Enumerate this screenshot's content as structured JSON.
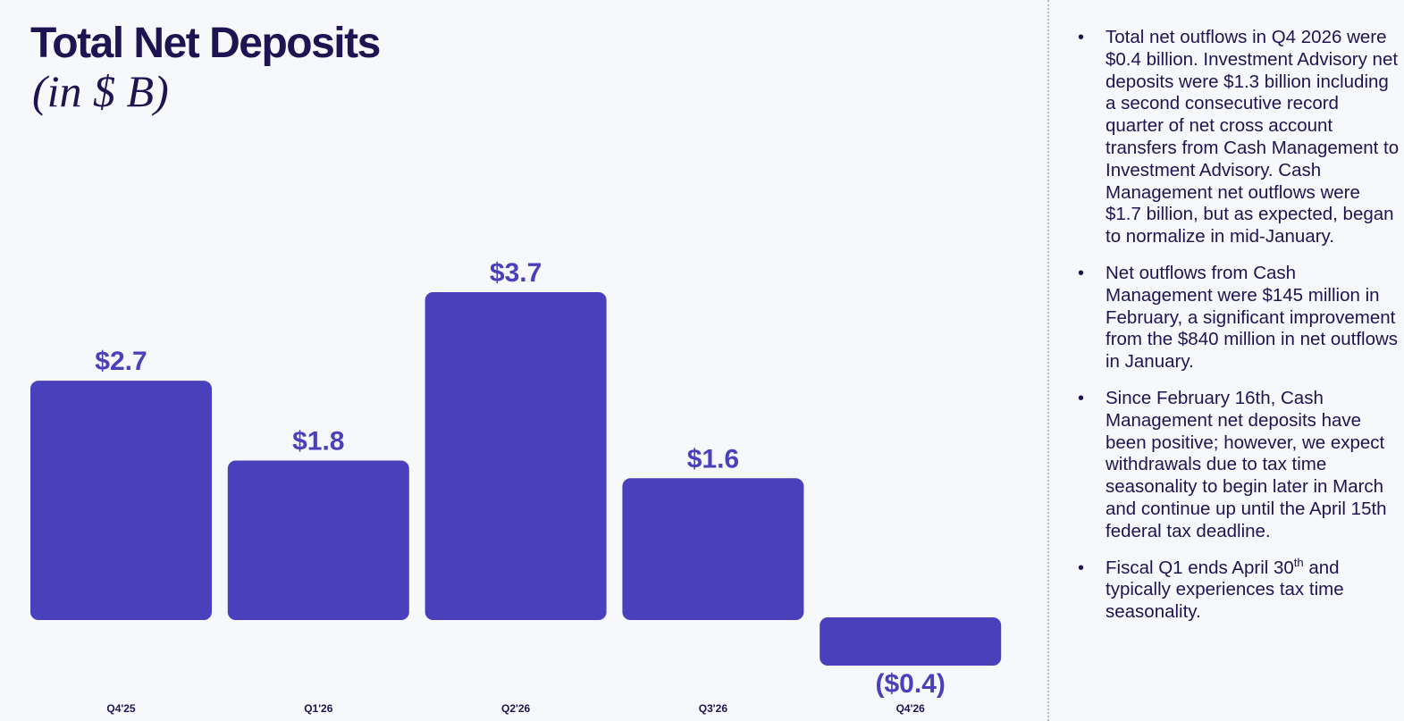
{
  "title": "Total Net Deposits",
  "subtitle": "(in $ B)",
  "chart_data": {
    "type": "bar",
    "title": "Total Net Deposits",
    "subtitle": "(in $ B)",
    "categories": [
      "Q4'25",
      "Q1'26",
      "Q2'26",
      "Q3'26",
      "Q4'26"
    ],
    "values": [
      2.7,
      1.8,
      3.7,
      1.6,
      -0.4
    ],
    "data_labels": [
      "$2.7",
      "$1.8",
      "$3.7",
      "$1.6",
      "($0.4)"
    ],
    "bar_color": "#4a40bb",
    "label_color": "#4a40bb",
    "grid": false,
    "legend": "none"
  },
  "notes": [
    {
      "text": "Total net outflows in Q4 2026 were $0.4 billion. Investment Advisory net deposits were $1.3 billion including a second consecutive record quarter of net cross account transfers from Cash Management to Investment Advisory. Cash Management net outflows were $1.7 billion, but as expected, began to normalize in mid-January."
    },
    {
      "text": "Net outflows from Cash Management were $145 million in February, a significant improvement from the $840 million in net outflows in January."
    },
    {
      "text": "Since February 16th, Cash Management net deposits have been positive; however, we expect withdrawals due to tax time seasonality to begin later in March and continue up until the April 15th federal tax deadline."
    },
    {
      "text_before": "Fiscal Q1 ends April 30",
      "superscript": "th",
      "text_after": " and typically experiences tax time seasonality."
    }
  ]
}
